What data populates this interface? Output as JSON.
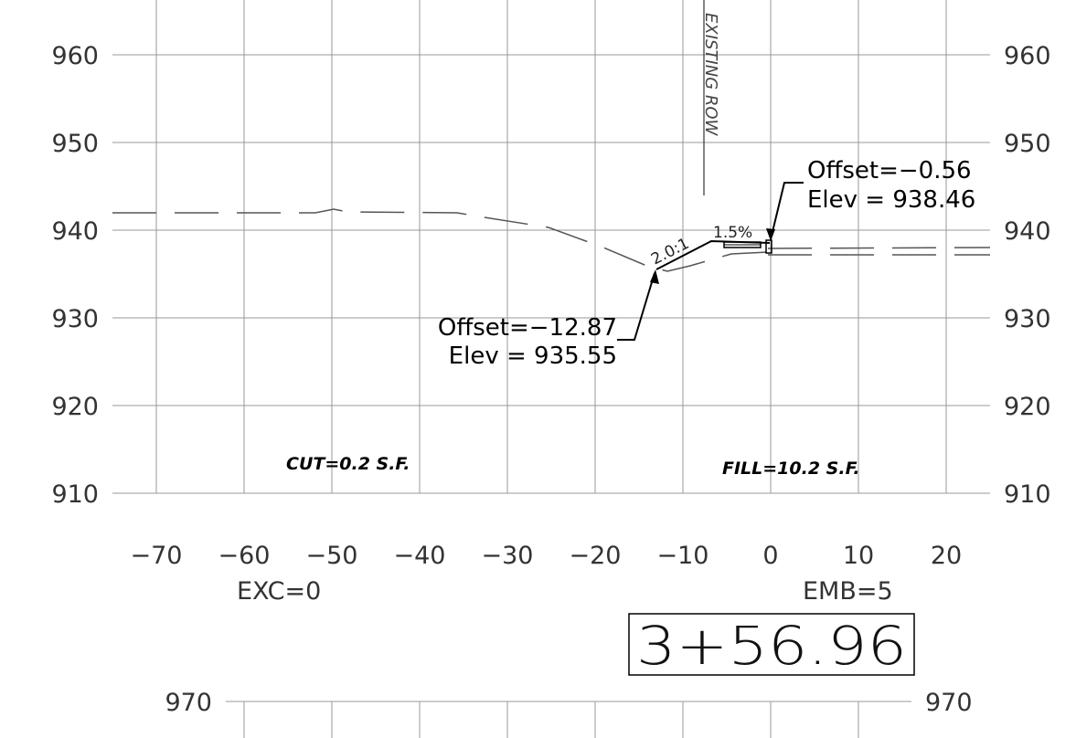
{
  "y_axis": {
    "ticks_left": [
      "960",
      "950",
      "940",
      "930",
      "920",
      "910"
    ],
    "ticks_right": [
      "960",
      "950",
      "940",
      "930",
      "920",
      "910"
    ]
  },
  "x_axis": {
    "ticks": [
      "−70",
      "−60",
      "−50",
      "−40",
      "−30",
      "−20",
      "−10",
      "0",
      "10",
      "20"
    ]
  },
  "annotations": {
    "existing_row": "EXISTING ROW",
    "right_offset": "Offset=−0.56",
    "right_elev": "Elev  =  938.46",
    "left_offset": "Offset=−12.87",
    "left_elev": "Elev  =  935.55",
    "slope_ratio": "2.0:1",
    "slope_pct": "1.5%",
    "cut": "CUT=0.2  S.F.",
    "fill": "FILL=10.2  S.F.",
    "exc": "EXC=0",
    "emb": "EMB=5",
    "station": "3+56.96"
  },
  "next_section": {
    "tick_left": "970",
    "tick_right": "970"
  }
}
